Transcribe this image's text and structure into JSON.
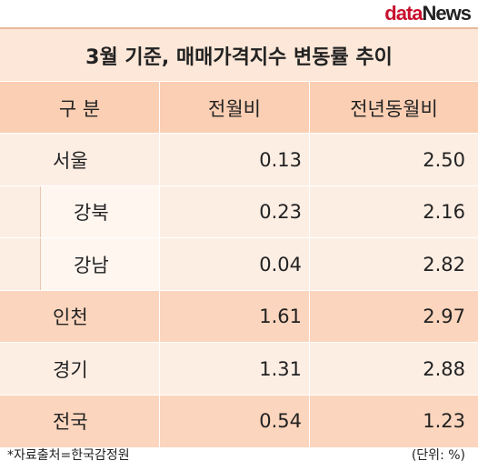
{
  "header": {
    "logo": {
      "first": "data",
      "second": "News"
    },
    "title": "3월 기준, 매매가격지수 변동률 추이"
  },
  "table": {
    "columns": [
      "구  분",
      "전월비",
      "전년동월비"
    ],
    "rows": [
      [
        "서울",
        "0.13",
        "2.50"
      ],
      [
        "강북",
        "0.23",
        "2.16"
      ],
      [
        "강남",
        "0.04",
        "2.82"
      ],
      [
        "인천",
        "1.61",
        "2.97"
      ],
      [
        "경기",
        "1.31",
        "2.88"
      ],
      [
        "전국",
        "0.54",
        "1.23"
      ]
    ]
  },
  "footer": {
    "source": "*자료출처=한국감정원",
    "unit": "(단위: %)"
  }
}
